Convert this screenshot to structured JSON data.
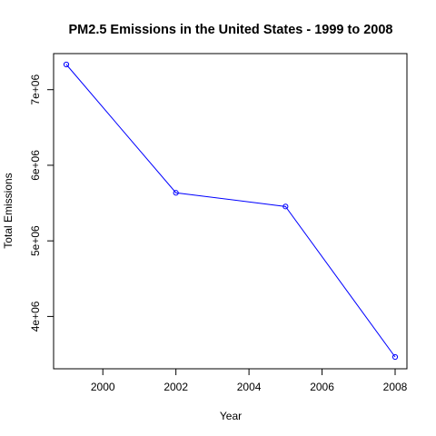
{
  "chart_data": {
    "type": "line",
    "title": "PM2.5 Emissions in the United States - 1999 to 2008",
    "xlabel": "Year",
    "ylabel": "Total Emissions",
    "x": [
      1999,
      2002,
      2005,
      2008
    ],
    "series": [
      {
        "values": [
          7332967,
          5635780,
          5454703,
          3464206
        ],
        "color": "#0000ff"
      }
    ],
    "xlim": [
      1999,
      2008
    ],
    "ylim": [
      3464206,
      7332967
    ],
    "x_ticks": [
      2000,
      2002,
      2004,
      2006,
      2008
    ],
    "x_tick_labels": [
      "2000",
      "2002",
      "2004",
      "2006",
      "2008"
    ],
    "y_ticks": [
      4000000,
      5000000,
      6000000,
      7000000
    ],
    "y_tick_labels": [
      "4e+06",
      "5e+06",
      "6e+06",
      "7e+06"
    ],
    "grid": false,
    "point_marker": "open-circle"
  }
}
